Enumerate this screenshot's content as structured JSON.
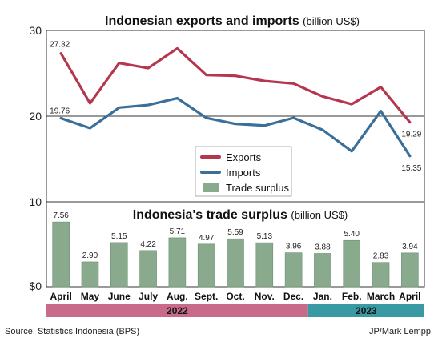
{
  "chart_data": [
    {
      "type": "line",
      "title": "Indonesian exports and imports",
      "unit_label": "(billion US$)",
      "categories": [
        "April",
        "May",
        "June",
        "July",
        "Aug.",
        "Sept.",
        "Oct.",
        "Nov.",
        "Dec.",
        "Jan.",
        "Feb.",
        "March",
        "April"
      ],
      "series": [
        {
          "name": "Exports",
          "color": "#b5374f",
          "values": [
            27.32,
            21.5,
            26.2,
            25.6,
            27.9,
            24.8,
            24.7,
            24.1,
            23.8,
            22.3,
            21.4,
            23.4,
            19.29
          ]
        },
        {
          "name": "Imports",
          "color": "#3a6f9a",
          "values": [
            19.76,
            18.6,
            21.0,
            21.3,
            22.1,
            19.8,
            19.1,
            18.9,
            19.8,
            18.4,
            15.9,
            20.6,
            15.35
          ]
        }
      ],
      "labeled_points": {
        "exports_first": "27.32",
        "imports_first": "19.76",
        "exports_last": "19.29",
        "imports_last": "15.35"
      },
      "y_ticks": [
        "30",
        "20",
        "10"
      ],
      "ylim": [
        10,
        30
      ]
    },
    {
      "type": "bar",
      "title": "Indonesia's trade surplus",
      "unit_label": "(billion US$)",
      "categories": [
        "April",
        "May",
        "June",
        "July",
        "Aug.",
        "Sept.",
        "Oct.",
        "Nov.",
        "Dec.",
        "Jan.",
        "Feb.",
        "March",
        "April"
      ],
      "values": [
        7.56,
        2.9,
        5.15,
        4.22,
        5.71,
        4.97,
        5.59,
        5.13,
        3.96,
        3.88,
        5.4,
        2.83,
        3.94
      ],
      "value_labels": [
        "7.56",
        "2.90",
        "5.15",
        "4.22",
        "5.71",
        "4.97",
        "5.59",
        "5.13",
        "3.96",
        "3.88",
        "5.40",
        "2.83",
        "3.94"
      ],
      "series_name": "Trade surplus",
      "color": "#8aaa8e",
      "y_ticks": [
        "10",
        "$0"
      ],
      "ylim": [
        0,
        10
      ],
      "year_groups": [
        {
          "label": "2022",
          "count": 9,
          "color": "#c86b8a"
        },
        {
          "label": "2023",
          "count": 4,
          "color": "#3a9aa3"
        }
      ]
    }
  ],
  "legend": {
    "items": [
      {
        "label": "Exports",
        "shape": "line",
        "color": "#b5374f"
      },
      {
        "label": "Imports",
        "shape": "line",
        "color": "#3a6f9a"
      },
      {
        "label": "Trade surplus",
        "shape": "box",
        "color": "#8aaa8e"
      }
    ]
  },
  "footer": {
    "source": "Source: Statistics Indonesia (BPS)",
    "credit": "JP/Mark Lempp"
  }
}
